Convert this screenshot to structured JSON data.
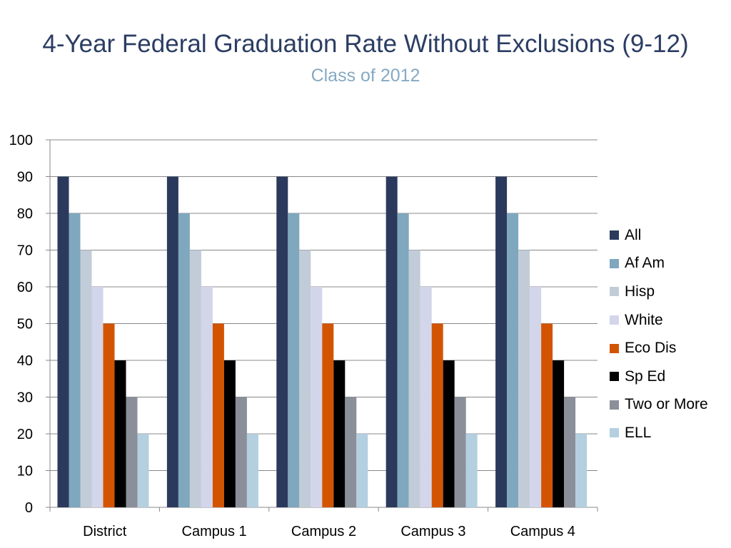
{
  "chart_data": {
    "type": "bar",
    "title": "4-Year Federal Graduation Rate Without Exclusions (9-12)",
    "subtitle": "Class of 2012",
    "categories": [
      "District",
      "Campus 1",
      "Campus 2",
      "Campus 3",
      "Campus 4"
    ],
    "series": [
      {
        "name": "All",
        "color": "#2b3a5c",
        "values": [
          90,
          90,
          90,
          90,
          90
        ]
      },
      {
        "name": "Af Am",
        "color": "#7fa7bd",
        "values": [
          80,
          80,
          80,
          80,
          80
        ]
      },
      {
        "name": "Hisp",
        "color": "#c2ccd8",
        "values": [
          70,
          70,
          70,
          70,
          70
        ]
      },
      {
        "name": "White",
        "color": "#d3d6ea",
        "values": [
          60,
          60,
          60,
          60,
          60
        ]
      },
      {
        "name": "Eco Dis",
        "color": "#d35400",
        "values": [
          50,
          50,
          50,
          50,
          50
        ]
      },
      {
        "name": "Sp Ed",
        "color": "#000000",
        "values": [
          40,
          40,
          40,
          40,
          40
        ]
      },
      {
        "name": "Two or More",
        "color": "#8b8f99",
        "values": [
          30,
          30,
          30,
          30,
          30
        ]
      },
      {
        "name": "ELL",
        "color": "#b3cfe0",
        "values": [
          20,
          20,
          20,
          20,
          20
        ]
      }
    ],
    "ylim": [
      0,
      100
    ],
    "yticks": [
      "0",
      "10",
      "20",
      "30",
      "40",
      "50",
      "60",
      "70",
      "80",
      "90",
      "100"
    ],
    "grid": true,
    "legend_position": "right"
  }
}
